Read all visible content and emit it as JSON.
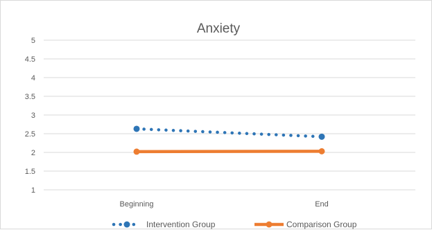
{
  "chart_data": {
    "type": "line",
    "title": "Anxiety",
    "categories": [
      "Beginning",
      "End"
    ],
    "ylim": [
      1,
      5
    ],
    "yticks": [
      "1",
      "1.5",
      "2",
      "2.5",
      "3",
      "3.5",
      "4",
      "4.5",
      "5"
    ],
    "grid": true,
    "legend_position": "bottom",
    "series": [
      {
        "name": "Intervention Group",
        "values": [
          2.63,
          2.42
        ],
        "color": "#2e75b6",
        "style": "dotted"
      },
      {
        "name": "Comparison Group",
        "values": [
          2.02,
          2.03
        ],
        "color": "#ed7d31",
        "style": "solid"
      }
    ]
  }
}
